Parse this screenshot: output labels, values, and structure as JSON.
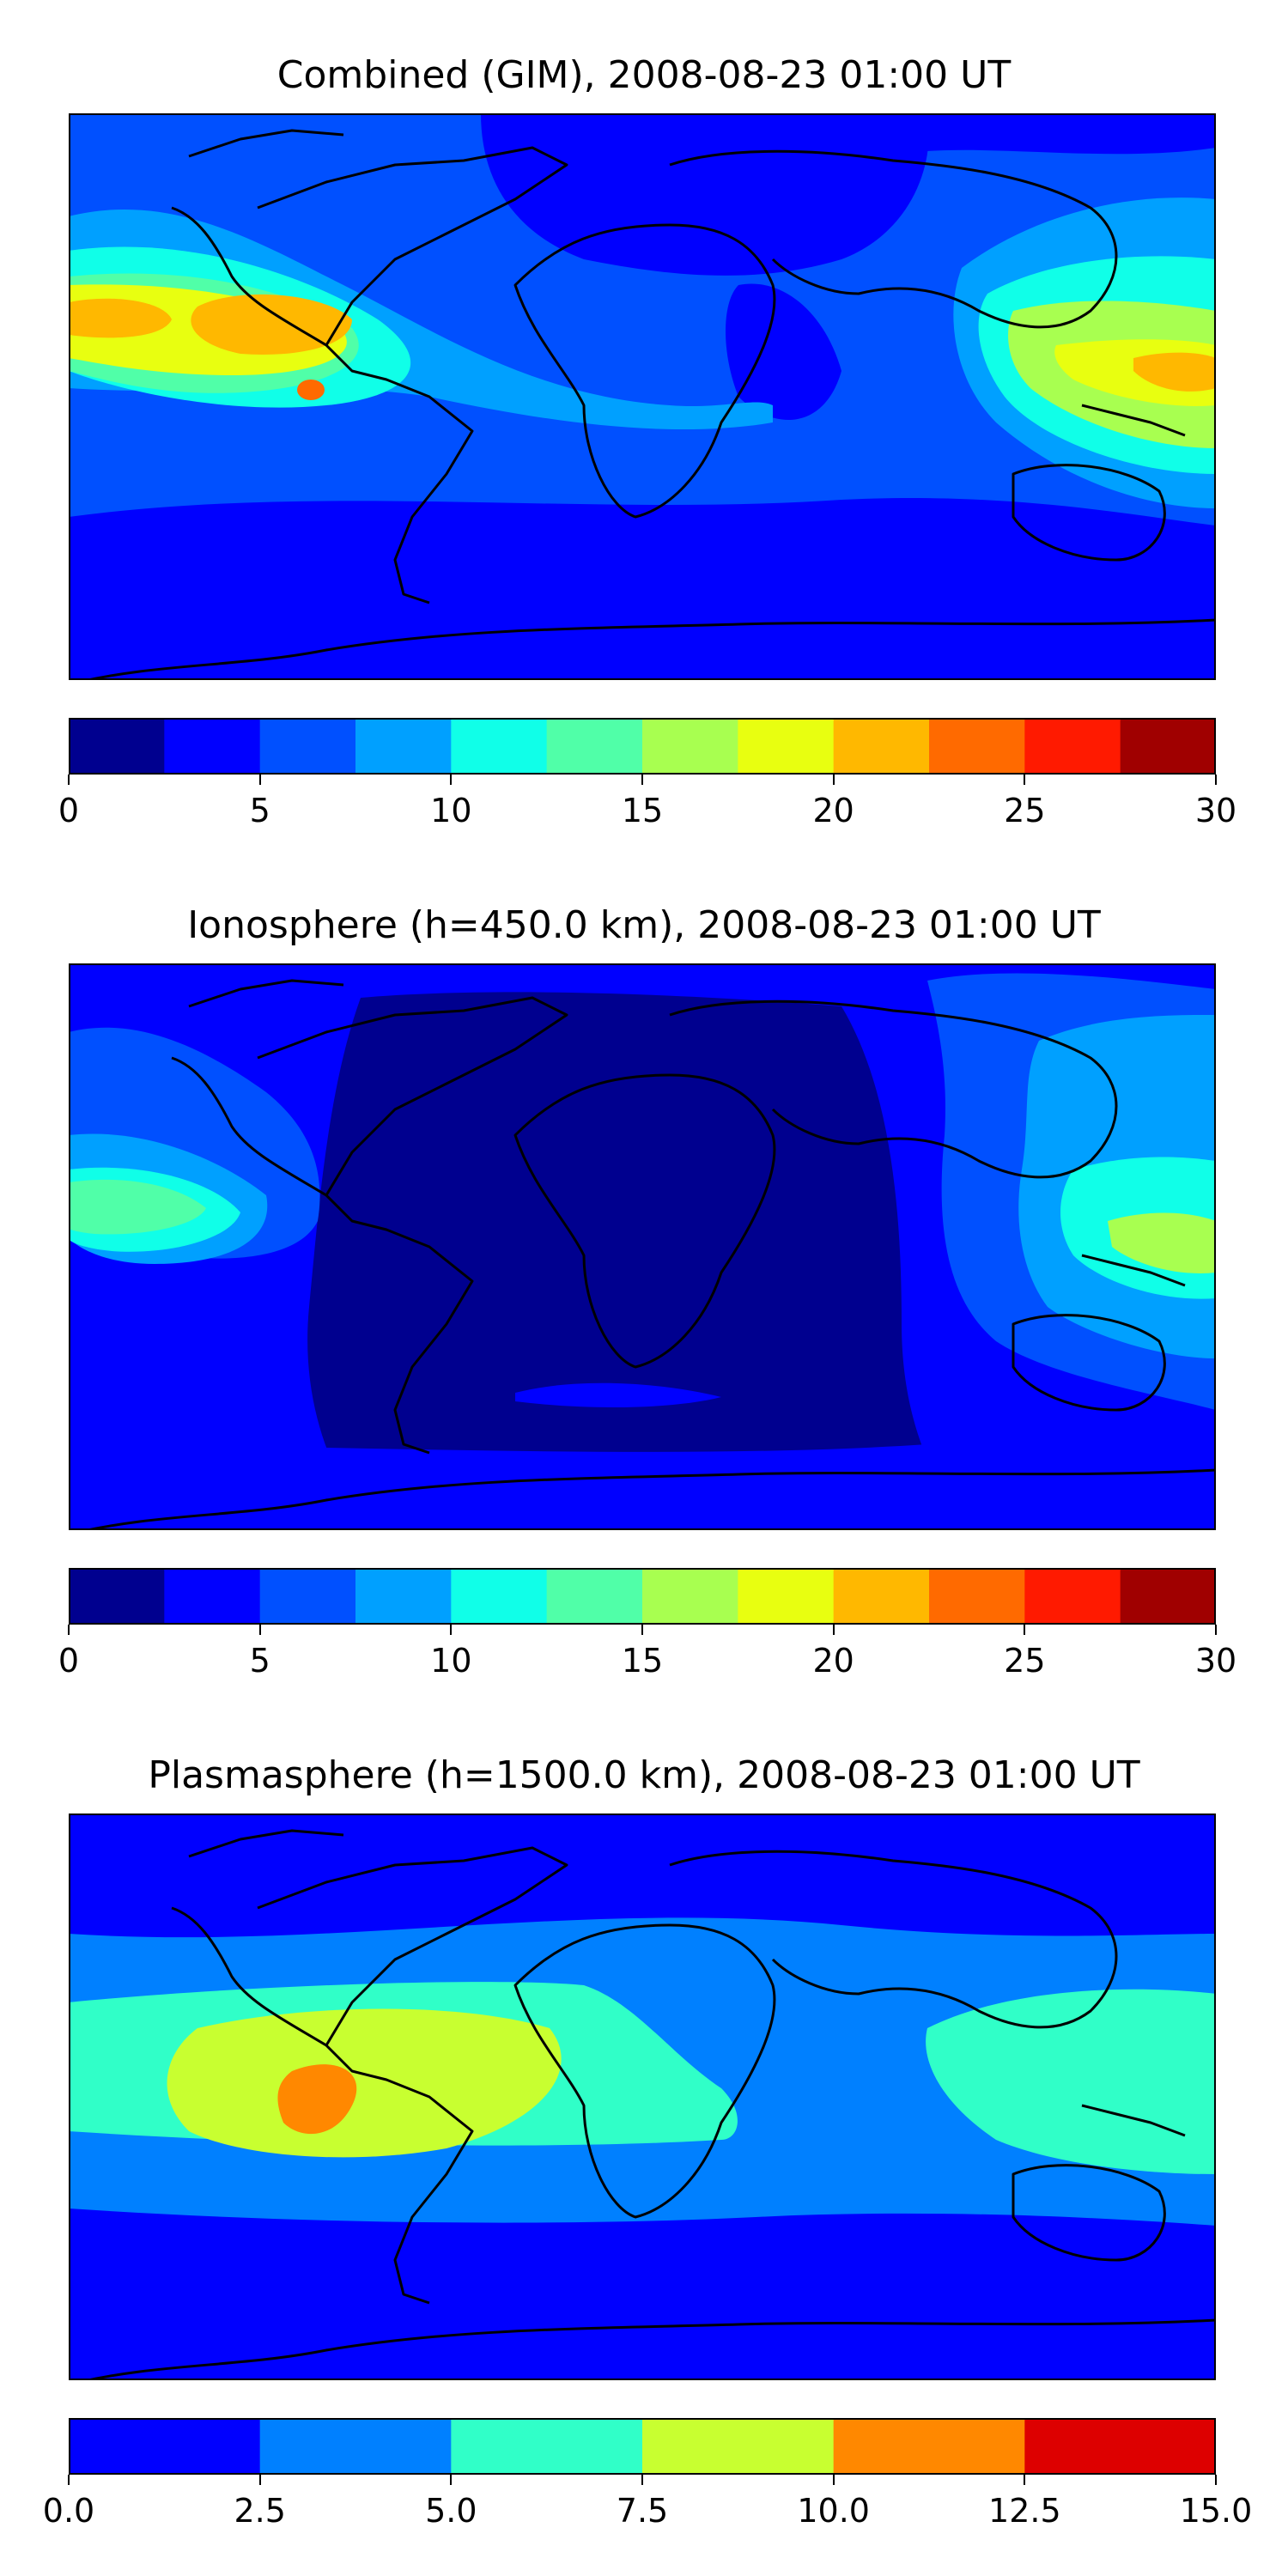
{
  "chart_data": [
    {
      "type": "heatmap",
      "title": "Combined (GIM), 2008-08-23 01:00 UT",
      "xlabel": "",
      "ylabel": "",
      "colorbar": {
        "ticks": [
          "0",
          "5",
          "10",
          "15",
          "20",
          "25",
          "30"
        ],
        "range": [
          0,
          30
        ],
        "levels": [
          0,
          2.5,
          5,
          7.5,
          10,
          12.5,
          15,
          17.5,
          20,
          22.5,
          25,
          27.5,
          30
        ],
        "colors": [
          "#00008f",
          "#0000ff",
          "#0050ff",
          "#00a0ff",
          "#10ffe8",
          "#50ffa8",
          "#a8ff50",
          "#e8ff10",
          "#ffb800",
          "#ff6a00",
          "#ff1a00",
          "#a00000"
        ]
      },
      "features": [
        {
          "kind": "band",
          "level": 5,
          "note": "low-latitude band, Pacific to Asia"
        },
        {
          "kind": "band",
          "level": 10,
          "note": "equatorial anomaly, east Pacific"
        },
        {
          "kind": "peak",
          "level": 22.5,
          "note": "max over east Pacific near 20-22.5"
        },
        {
          "kind": "peak",
          "level": 20,
          "note": "max over New Guinea region"
        }
      ]
    },
    {
      "type": "heatmap",
      "title": "Ionosphere  (h=450.0 km), 2008-08-23 01:00 UT",
      "xlabel": "",
      "ylabel": "",
      "colorbar": {
        "ticks": [
          "0",
          "5",
          "10",
          "15",
          "20",
          "25",
          "30"
        ],
        "range": [
          0,
          30
        ],
        "levels": [
          0,
          2.5,
          5,
          7.5,
          10,
          12.5,
          15,
          17.5,
          20,
          22.5,
          25,
          27.5,
          30
        ],
        "colors": [
          "#00008f",
          "#0000ff",
          "#0050ff",
          "#00a0ff",
          "#10ffe8",
          "#50ffa8",
          "#a8ff50",
          "#e8ff10",
          "#ffb800",
          "#ff6a00",
          "#ff1a00",
          "#a00000"
        ]
      },
      "features": [
        {
          "kind": "region",
          "level": 0,
          "note": "night-side minimum over Atlantic/Africa"
        },
        {
          "kind": "peak",
          "level": 15,
          "note": "max over east Pacific ~12.5-15"
        },
        {
          "kind": "peak",
          "level": 15,
          "note": "max over New Guinea ~15-17.5"
        }
      ]
    },
    {
      "type": "heatmap",
      "title": "Plasmasphere (h=1500.0 km), 2008-08-23 01:00 UT",
      "xlabel": "",
      "ylabel": "",
      "colorbar": {
        "ticks": [
          "0.0",
          "2.5",
          "5.0",
          "7.5",
          "10.0",
          "12.5",
          "15.0"
        ],
        "range": [
          0,
          15
        ],
        "levels": [
          0,
          2.5,
          5,
          7.5,
          10,
          12.5,
          15
        ],
        "colors": [
          "#0000ff",
          "#0080ff",
          "#30ffc8",
          "#c8ff30",
          "#ff8800",
          "#dd0000"
        ]
      },
      "features": [
        {
          "kind": "band",
          "level": 2.5,
          "note": "broad mid-latitude band"
        },
        {
          "kind": "band",
          "level": 5,
          "note": "low-latitude belt"
        },
        {
          "kind": "peak",
          "level": 10,
          "note": "max over east Pacific / South America ~10-12.5"
        }
      ]
    }
  ],
  "colors": {
    "coastline": "#000000",
    "background": "#ffffff"
  }
}
